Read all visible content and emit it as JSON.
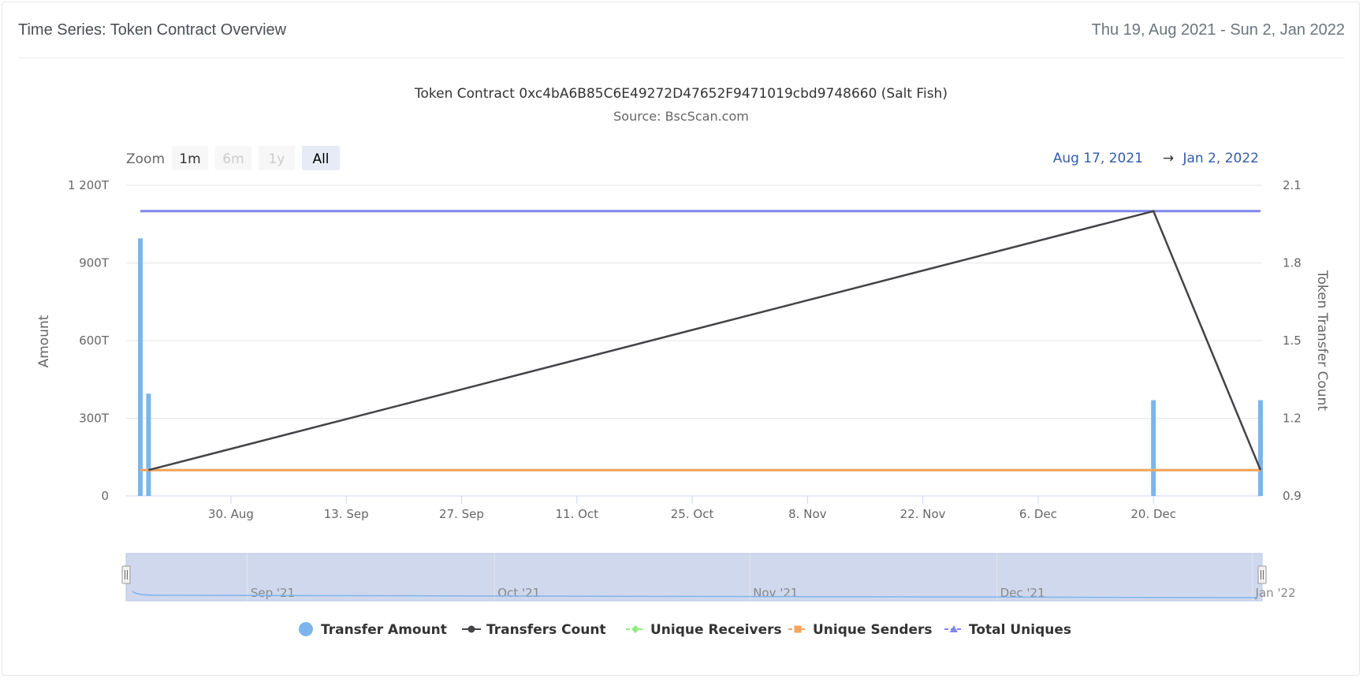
{
  "header": {
    "title": "Time Series: Token Contract Overview",
    "date_range": "Thu 19, Aug 2021 - Sun 2, Jan 2022"
  },
  "colors": {
    "transfer_amount": "#7cb5ec",
    "transfers_count": "#434348",
    "unique_receivers": "#90ed7d",
    "unique_senders": "#f7a35c",
    "total_uniques": "#8085e9",
    "navigator_fill": "#d0d8ee",
    "range_text": "#335cad"
  },
  "range_selector": {
    "zoom_label": "Zoom",
    "buttons": [
      {
        "label": "1m",
        "state": "enabled"
      },
      {
        "label": "6m",
        "state": "disabled"
      },
      {
        "label": "1y",
        "state": "disabled"
      },
      {
        "label": "All",
        "state": "selected"
      }
    ],
    "from": "Aug 17, 2021",
    "arrow": "→",
    "to": "Jan 2, 2022"
  },
  "chart_data": {
    "type": "line",
    "title": "Token Contract 0xc4bA6B85C6E49272D47652F9471019cbd9748660 (Salt Fish)",
    "subtitle": "Source: BscScan.com",
    "x_start": "2021-08-19",
    "x_end": "2022-01-02",
    "x_ticks": [
      {
        "date": "2021-08-30",
        "label": "30. Aug"
      },
      {
        "date": "2021-09-13",
        "label": "13. Sep"
      },
      {
        "date": "2021-09-27",
        "label": "27. Sep"
      },
      {
        "date": "2021-10-11",
        "label": "11. Oct"
      },
      {
        "date": "2021-10-25",
        "label": "25. Oct"
      },
      {
        "date": "2021-11-08",
        "label": "8. Nov"
      },
      {
        "date": "2021-11-22",
        "label": "22. Nov"
      },
      {
        "date": "2021-12-06",
        "label": "6. Dec"
      },
      {
        "date": "2021-12-20",
        "label": "20. Dec"
      }
    ],
    "y_left": {
      "title": "Amount",
      "min": 0,
      "max": 1200,
      "ticks": [
        0,
        300,
        600,
        900,
        1200
      ],
      "tick_labels": [
        "0",
        "300T",
        "600T",
        "900T",
        "1 200T"
      ]
    },
    "y_right": {
      "title": "Token Transfer Count",
      "min": 0.9,
      "max": 2.1,
      "ticks": [
        0.9,
        1.2,
        1.5,
        1.8,
        2.1
      ],
      "tick_labels": [
        "0.9",
        "1.2",
        "1.5",
        "1.8",
        "2.1"
      ]
    },
    "series": [
      {
        "name": "Transfer Amount",
        "type": "column",
        "axis": "left",
        "points": [
          {
            "date": "2021-08-19",
            "value": 995
          },
          {
            "date": "2021-08-20",
            "value": 395
          },
          {
            "date": "2021-12-20",
            "value": 370
          },
          {
            "date": "2022-01-02",
            "value": 370
          }
        ]
      },
      {
        "name": "Transfers Count",
        "type": "line",
        "axis": "right",
        "points": [
          {
            "date": "2021-08-20",
            "value": 1
          },
          {
            "date": "2021-12-20",
            "value": 2
          },
          {
            "date": "2022-01-02",
            "value": 1
          }
        ]
      },
      {
        "name": "Unique Receivers",
        "type": "line",
        "axis": "right",
        "points": [
          {
            "date": "2021-08-19",
            "value": 1
          },
          {
            "date": "2022-01-02",
            "value": 1
          }
        ]
      },
      {
        "name": "Unique Senders",
        "type": "line",
        "axis": "right",
        "points": [
          {
            "date": "2021-08-19",
            "value": 1
          },
          {
            "date": "2022-01-02",
            "value": 1
          }
        ]
      },
      {
        "name": "Total Uniques",
        "type": "line",
        "axis": "right",
        "points": [
          {
            "date": "2021-08-19",
            "value": 2
          },
          {
            "date": "2022-01-02",
            "value": 2
          }
        ]
      }
    ],
    "navigator": {
      "labels": [
        "Sep '21",
        "Oct '21",
        "Nov '21",
        "Dec '21",
        "Jan '22"
      ],
      "label_dates": [
        "2021-09-01",
        "2021-10-01",
        "2021-11-01",
        "2021-12-01",
        "2022-01-01"
      ],
      "start": "2021-08-17",
      "end": "2022-01-02"
    },
    "legend": [
      {
        "name": "Transfer Amount",
        "marker": "circle"
      },
      {
        "name": "Transfers Count",
        "marker": "circle-line"
      },
      {
        "name": "Unique Receivers",
        "marker": "diamond-line"
      },
      {
        "name": "Unique Senders",
        "marker": "square-line"
      },
      {
        "name": "Total Uniques",
        "marker": "triangle-line"
      }
    ]
  }
}
